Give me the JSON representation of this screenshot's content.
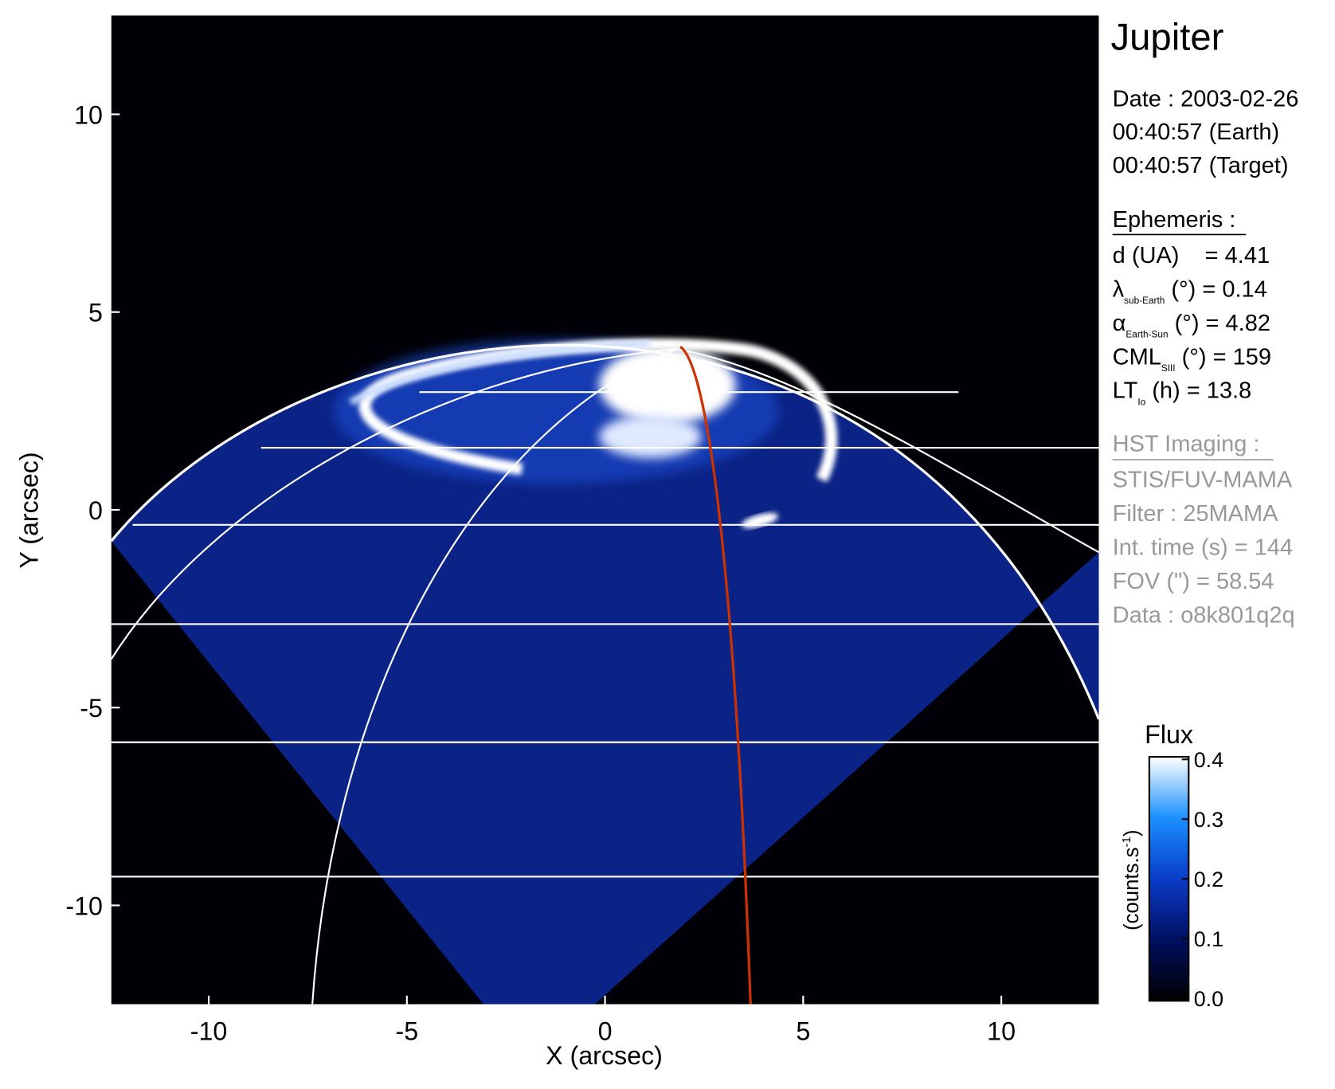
{
  "chart_data": {
    "type": "image",
    "xlabel": "X (arcsec)",
    "ylabel": "Y (arcsec)",
    "xlim": [
      -12.46,
      12.46
    ],
    "ylim": [
      -12.5,
      12.5
    ],
    "xticks": [
      -10,
      -5,
      0,
      5,
      10
    ],
    "yticks": [
      -10,
      -5,
      0,
      5,
      10
    ],
    "limb_color": "#ffffff",
    "footprint_color": "#cc3300",
    "colorbar": {
      "title": "Flux",
      "unit": {
        "text": "(counts.s",
        "sup": "-1",
        "close": ")"
      },
      "lim": [
        0,
        0.4
      ],
      "ticks": [
        {
          "value": 0,
          "label": "0.0"
        },
        0.1,
        0.2,
        0.3,
        0.4
      ],
      "colors": [
        "#000000",
        "#001060",
        "#0a3cc8",
        "#1a90ff",
        "#ffffff"
      ]
    }
  },
  "info": {
    "title": "Jupiter",
    "date": [
      "Date : 2003-02-26",
      "00:40:57 (Earth)",
      "00:40:57 (Target)"
    ],
    "ephemeris": {
      "heading": "Ephemeris :",
      "rows": [
        {
          "main": "d (UA)    = 4.41"
        },
        {
          "main": "λ",
          "sub": "sub-Earth",
          "rest": " (°) = 0.14"
        },
        {
          "main": "α",
          "sub": "Earth-Sun",
          "rest": " (°) = 4.82"
        },
        {
          "main": "CML",
          "sub": "SIII",
          "rest": " (°) = 159"
        },
        {
          "main": "LT",
          "sub": "Io",
          "rest": " (h) = 13.8"
        }
      ]
    },
    "imaging": {
      "heading": "HST Imaging :",
      "rows": [
        "STIS/FUV-MAMA",
        "Filter : 25MAMA",
        "Int. time (s) = 144",
        "FOV (\") = 58.54",
        "Data : o8k801q2q"
      ]
    }
  }
}
